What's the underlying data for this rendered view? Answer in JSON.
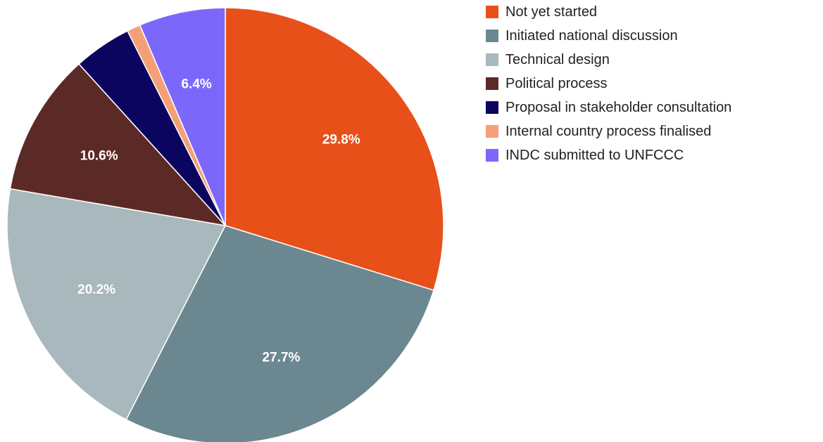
{
  "chart_data": {
    "type": "pie",
    "categories": [
      "Not yet started",
      "Initiated national discussion",
      "Technical design",
      "Political process",
      "Proposal in stakeholder consultation",
      "Internal country process finalised",
      "INDC submitted to UNFCCC"
    ],
    "values": [
      29.8,
      27.7,
      20.2,
      10.6,
      4.3,
      1.0,
      6.4
    ],
    "value_labels": [
      "29.8%",
      "27.7%",
      "20.2%",
      "10.6%",
      null,
      null,
      "6.4%"
    ],
    "colors": [
      "#e8501a",
      "#6b8890",
      "#a8b8bd",
      "#5c2a26",
      "#0c0560",
      "#f4a076",
      "#7b68fb"
    ],
    "legend": "right"
  }
}
